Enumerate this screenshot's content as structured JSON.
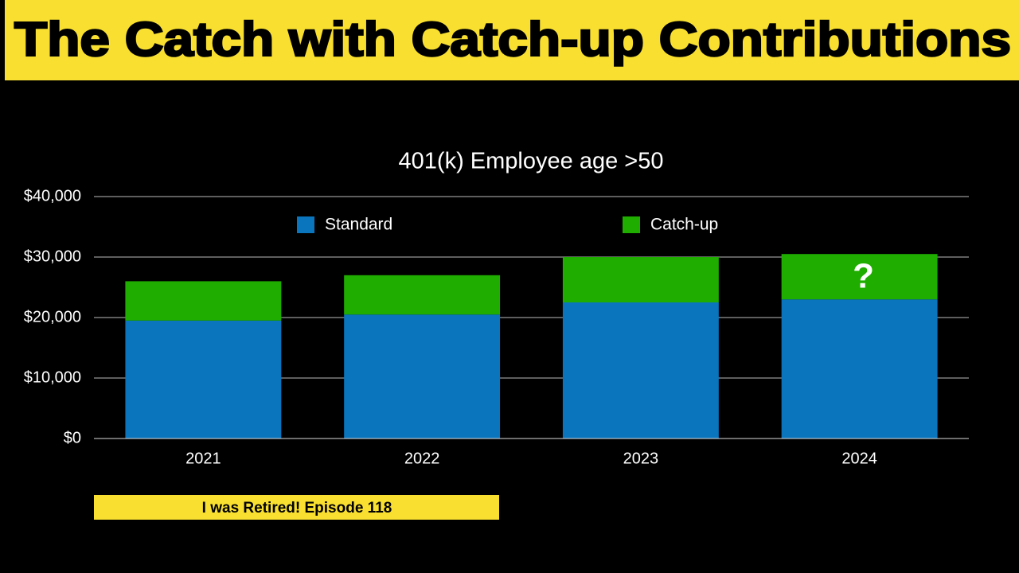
{
  "header": {
    "title": "The Catch with Catch-up Contributions"
  },
  "chart_data": {
    "type": "stacked_bar",
    "title": "401(k) Employee age >50",
    "categories": [
      "2021",
      "2022",
      "2023",
      "2024"
    ],
    "series": [
      {
        "name": "Standard",
        "color": "#0a75bd",
        "values": [
          19500,
          20500,
          22500,
          23000
        ]
      },
      {
        "name": "Catch-up",
        "color": "#1fad00",
        "values": [
          6500,
          6500,
          7500,
          7500
        ]
      }
    ],
    "ylim": [
      0,
      40000
    ],
    "yticks": [
      {
        "value": 0,
        "label": "$0"
      },
      {
        "value": 10000,
        "label": "$10,000"
      },
      {
        "value": 20000,
        "label": "$20,000"
      },
      {
        "value": 30000,
        "label": "$30,000"
      },
      {
        "value": 40000,
        "label": "$40,000"
      }
    ],
    "grid": true,
    "legend": "top",
    "annotation": "?"
  },
  "footer": {
    "label": "I was Retired! Episode 118"
  }
}
